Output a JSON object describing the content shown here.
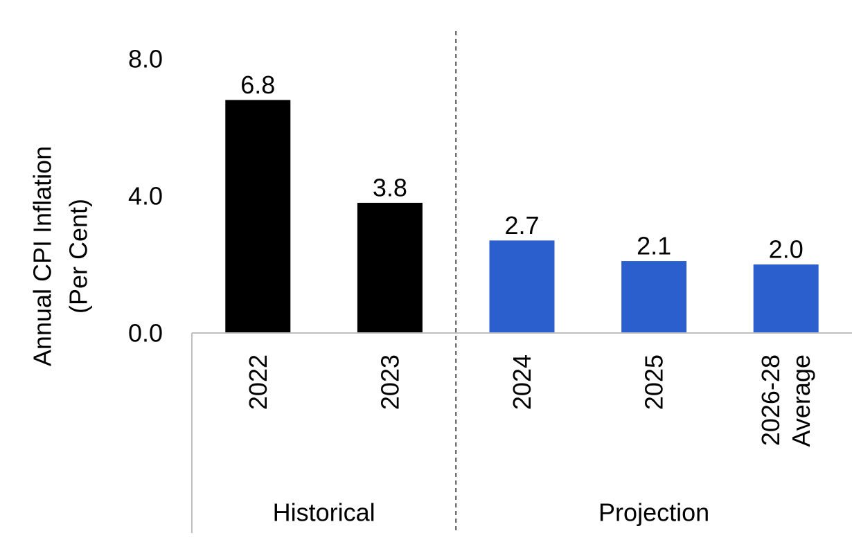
{
  "chart_data": {
    "type": "bar",
    "title": "",
    "ylabel_lines": [
      "Annual CPI Inflation",
      "(Per Cent)"
    ],
    "xlabel": "",
    "ylim": [
      0,
      8
    ],
    "yticks": [
      "0.0",
      "4.0",
      "8.0"
    ],
    "grid": false,
    "categories": [
      {
        "lines": [
          "2022"
        ],
        "group": "Historical"
      },
      {
        "lines": [
          "2023"
        ],
        "group": "Historical"
      },
      {
        "lines": [
          "2024"
        ],
        "group": "Projection"
      },
      {
        "lines": [
          "2025"
        ],
        "group": "Projection"
      },
      {
        "lines": [
          "2026-28",
          "Average"
        ],
        "group": "Projection"
      }
    ],
    "values": [
      6.8,
      3.8,
      2.7,
      2.1,
      2.0
    ],
    "value_labels": [
      "6.8",
      "3.8",
      "2.7",
      "2.1",
      "2.0"
    ],
    "groups": [
      "Historical",
      "Projection"
    ],
    "colors": {
      "Historical": "#000000",
      "Projection": "#2b5fce"
    },
    "divider_color": "#555555",
    "axis_color": "#bfbfbf"
  }
}
